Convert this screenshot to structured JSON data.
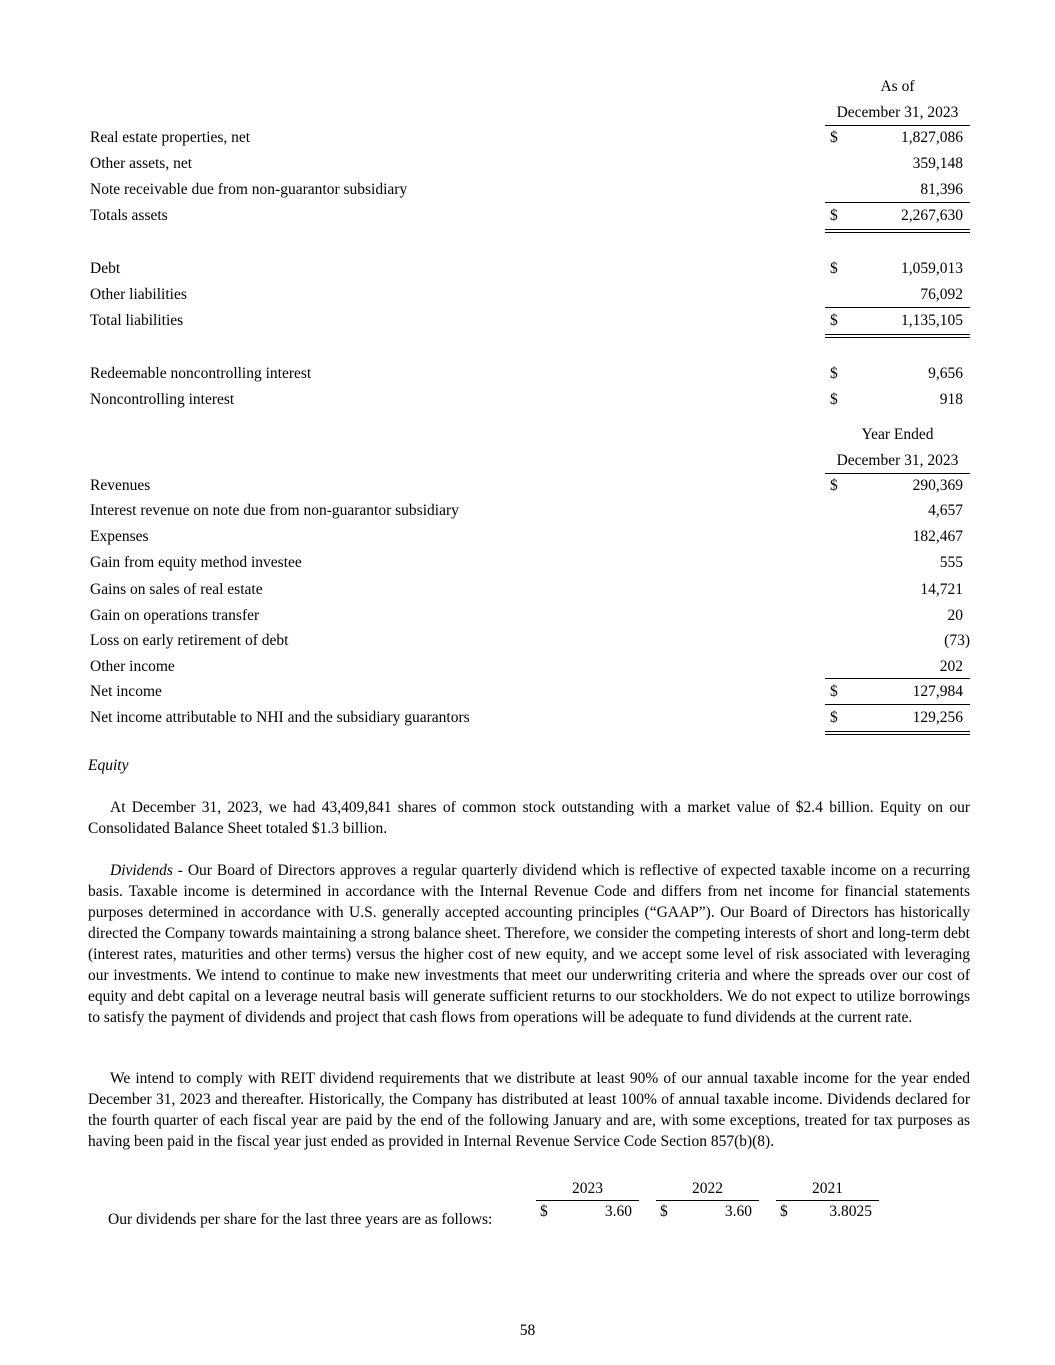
{
  "balance": {
    "header_line1": "As of",
    "header_line2": "December 31, 2023",
    "rows": [
      {
        "label": "Real estate properties, net",
        "cur": "$",
        "value": "1,827,086"
      },
      {
        "label": "Other assets, net",
        "cur": "",
        "value": "359,148"
      },
      {
        "label": "Note receivable due from non-guarantor subsidiary",
        "cur": "",
        "value": "81,396"
      },
      {
        "label": "Totals assets",
        "cur": "$",
        "value": "2,267,630",
        "total": true
      },
      {
        "label": "Debt",
        "cur": "$",
        "value": "1,059,013"
      },
      {
        "label": "Other liabilities",
        "cur": "",
        "value": "76,092"
      },
      {
        "label": "Total liabilities",
        "cur": "$",
        "value": "1,135,105",
        "total": true
      },
      {
        "label": "Redeemable noncontrolling interest",
        "cur": "$",
        "value": "9,656"
      },
      {
        "label": "Noncontrolling interest",
        "cur": "$",
        "value": "918"
      }
    ]
  },
  "income": {
    "header_line1": "Year Ended",
    "header_line2": "December 31, 2023",
    "rows": [
      {
        "label": "Revenues",
        "cur": "$",
        "value": "290,369"
      },
      {
        "label": "Interest revenue on note due from non-guarantor subsidiary",
        "cur": "",
        "value": "4,657"
      },
      {
        "label": "Expenses",
        "cur": "",
        "value": "182,467"
      },
      {
        "label": "Gain from equity method investee",
        "cur": "",
        "value": "555"
      },
      {
        "label": "Gains on sales of real estate",
        "cur": "",
        "value": "14,721"
      },
      {
        "label": "Gain on operations transfer",
        "cur": "",
        "value": "20"
      },
      {
        "label": "Loss on early retirement of debt",
        "cur": "",
        "value": "(73)"
      },
      {
        "label": "Other income",
        "cur": "",
        "value": "202"
      },
      {
        "label": "Net income",
        "cur": "$",
        "value": "127,984",
        "topline": true
      },
      {
        "label": "Net income attributable to NHI and the subsidiary guarantors",
        "cur": "$",
        "value": "129,256",
        "topline": true,
        "double": true
      }
    ]
  },
  "equity": {
    "heading": "Equity",
    "para1": "At December 31, 2023, we had 43,409,841 shares of common stock outstanding with a market value of $2.4 billion. Equity on our Consolidated Balance Sheet totaled $1.3 billion.",
    "para2_lead": "Dividends",
    "para2": " - Our Board of Directors approves a regular quarterly dividend which is reflective of expected taxable income on a recurring basis. Taxable income is determined in accordance with the Internal Revenue Code and differs from net income for financial statements purposes determined in accordance with U.S. generally accepted accounting principles (“GAAP”). Our Board of Directors has historically directed the Company towards maintaining a strong balance sheet. Therefore, we consider the competing interests of short and long-term debt (interest rates, maturities and other terms) versus the higher cost of new equity, and we accept some level of risk associated with leveraging our investments. We intend to continue to make new investments that meet our underwriting criteria and where the spreads over our cost of equity and debt capital on a leverage neutral basis will generate sufficient returns to our stockholders. We do not expect to utilize borrowings to satisfy the payment of dividends and project that cash flows from operations will be adequate to fund dividends at the current rate.",
    "para3": "We intend to comply with REIT dividend requirements that we distribute at least 90% of our annual taxable income for the year ended December 31, 2023 and thereafter. Historically, the Company has distributed at least 100% of annual taxable income. Dividends declared for the fourth quarter of each fiscal year are paid by the end of the following January and are, with some exceptions, treated for tax purposes as having been paid in the fiscal year just ended as provided in Internal Revenue Service Code Section 857(b)(8)."
  },
  "dividends": {
    "label": "Our dividends per share for the last three years are as follows:",
    "years": [
      {
        "year": "2023",
        "cur": "$",
        "value": "3.60"
      },
      {
        "year": "2022",
        "cur": "$",
        "value": "3.60"
      },
      {
        "year": "2021",
        "cur": "$",
        "value": "3.8025"
      }
    ]
  },
  "page_number": "58"
}
